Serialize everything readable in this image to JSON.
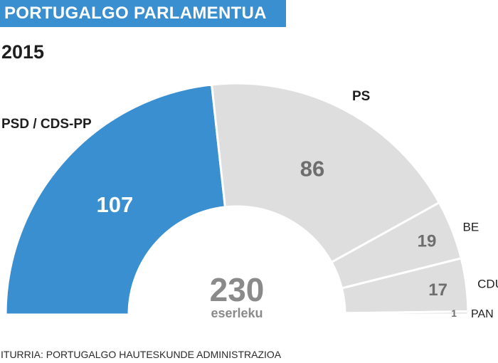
{
  "header": {
    "title": "PORTUGALGO PARLAMENTUA",
    "year": "2015"
  },
  "chart_data": {
    "type": "pie",
    "subtype": "half-donut",
    "total": 230,
    "total_label": "230",
    "total_unit": "eserleku",
    "series": [
      {
        "name": "PSD / CDS-PP",
        "value": 107,
        "color": "#3a8fd0"
      },
      {
        "name": "PS",
        "value": 86,
        "color": "#dedede"
      },
      {
        "name": "BE",
        "value": 19,
        "color": "#dedede"
      },
      {
        "name": "CDU",
        "value": 17,
        "color": "#dedede"
      },
      {
        "name": "PAN",
        "value": 1,
        "color": "#dedede"
      }
    ]
  },
  "footer": {
    "source": "ITURRIA: PORTUGALGO HAUTESKUNDE ADMINISTRAZIOA"
  }
}
